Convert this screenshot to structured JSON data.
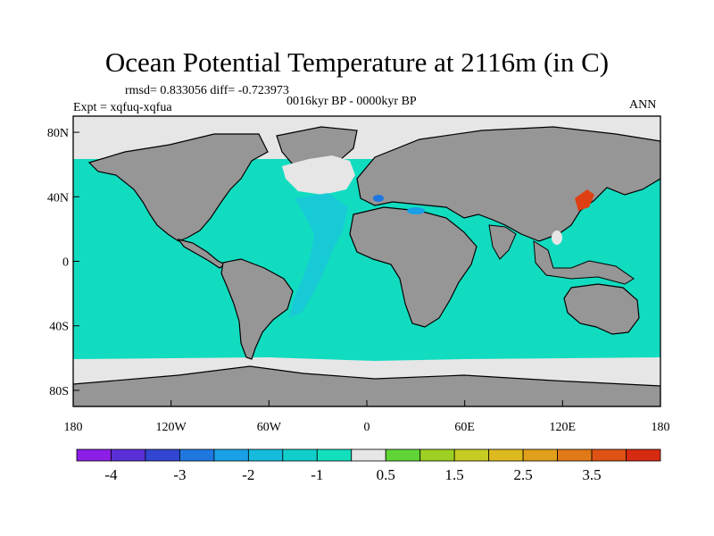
{
  "title": "Ocean Potential Temperature at 2116m (in C)",
  "stats": "rmsd= 0.833056 diff= -0.723973",
  "period": "0016kyr BP - 0000kyr BP",
  "expt": "Expt = xqfuq-xqfua",
  "season": "ANN",
  "chart_data": {
    "type": "map",
    "x_ticks": [
      "180",
      "120W",
      "60W",
      "0",
      "60E",
      "120E",
      "180"
    ],
    "y_ticks": [
      "80N",
      "40N",
      "0",
      "40S",
      "80S"
    ],
    "lon_range": [
      -180,
      180
    ],
    "lat_range": [
      -90,
      90
    ],
    "colorbar": {
      "colors": [
        "#8c1ee6",
        "#5a2fd6",
        "#3146d2",
        "#1f78e0",
        "#19a0e6",
        "#16bbdc",
        "#10cfcb",
        "#12e0bd",
        "#e6e6e6",
        "#5fd635",
        "#9ecf23",
        "#c6cc22",
        "#dcb91e",
        "#e0a01b",
        "#e07a17",
        "#de5215",
        "#d62b12"
      ],
      "labels": [
        "-4",
        "-3",
        "-2",
        "-1",
        "0.5",
        "1.5",
        "2.5",
        "3.5"
      ]
    },
    "colors": {
      "land": "#969696",
      "ocean_main": "#12dcc0",
      "atlantic_deep": "#19c8d7",
      "near_zero": "#e6e6e6",
      "warm_anomaly": "#de4014"
    }
  }
}
